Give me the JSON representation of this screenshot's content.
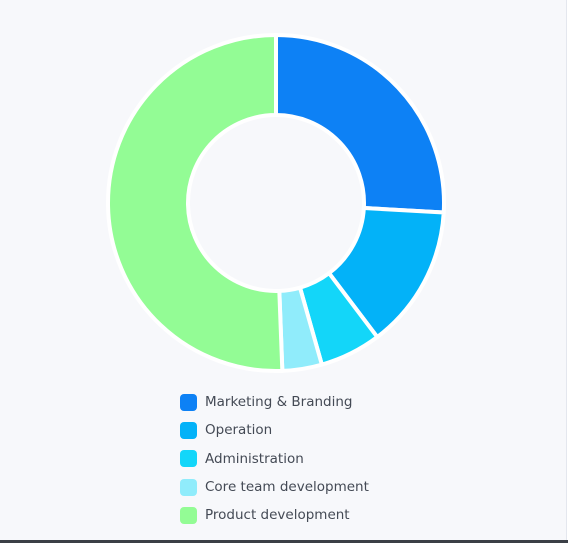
{
  "chart_data": {
    "type": "pie",
    "variant": "donut",
    "categories": [
      "Marketing & Branding",
      "Operation",
      "Administration",
      "Core team development",
      "Product development"
    ],
    "values": [
      25.9,
      13.8,
      5.9,
      3.8,
      50.6
    ],
    "colors": [
      "#0d81f5",
      "#03b2f8",
      "#13d6f9",
      "#90ecfb",
      "#93fc95"
    ],
    "legend_position": "bottom",
    "title": ""
  }
}
